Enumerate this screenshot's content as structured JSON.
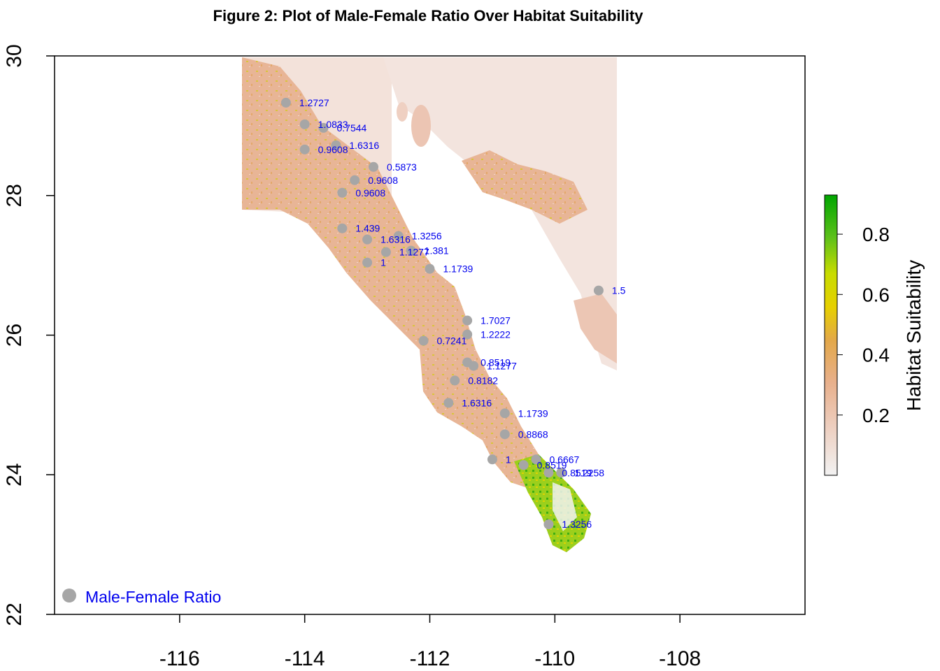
{
  "title": "Figure 2: Plot of Male-Female Ratio Over Habitat Suitability",
  "chart_data": {
    "type": "scatter",
    "map": "raster habitat suitability map, Baja California Sur / Gulf of California region",
    "title": "Figure 2: Plot of Male-Female Ratio Over Habitat Suitability",
    "xlim": [
      -118,
      -106
    ],
    "ylim": [
      22,
      30
    ],
    "x_ticks": [
      -116,
      -114,
      -112,
      -110,
      -108
    ],
    "y_ticks": [
      22,
      24,
      26,
      28,
      30
    ],
    "x_tick_labels": [
      "-116",
      "-114",
      "-112",
      "-110",
      "-108"
    ],
    "y_tick_labels": [
      "22",
      "24",
      "26",
      "28",
      "30"
    ],
    "colorbar": {
      "label": "Habitat Suitability",
      "range": [
        0,
        0.93
      ],
      "ticks": [
        0.2,
        0.4,
        0.6,
        0.8
      ],
      "tick_labels": [
        "0.2",
        "0.4",
        "0.6",
        "0.8"
      ],
      "colors": [
        "#f2f2f2",
        "#eab9a3",
        "#e3a65c",
        "#e6c81a",
        "#e6e600",
        "#6ec418",
        "#00a600"
      ]
    },
    "point_color": "#a6a6a6",
    "label_color": "#0000ee",
    "legend": {
      "label": "Male-Female Ratio",
      "position": "bottom-left"
    },
    "points": [
      {
        "x": -114.3,
        "y": 29.33,
        "label": "1.2727"
      },
      {
        "x": -114.0,
        "y": 29.02,
        "label": "1.0833"
      },
      {
        "x": -113.7,
        "y": 28.97,
        "label": "0.7544"
      },
      {
        "x": -114.0,
        "y": 28.66,
        "label": "0.9608"
      },
      {
        "x": -113.5,
        "y": 28.72,
        "label": "1.6316"
      },
      {
        "x": -112.9,
        "y": 28.41,
        "label": "0.5873"
      },
      {
        "x": -113.2,
        "y": 28.22,
        "label": "0.9608"
      },
      {
        "x": -113.4,
        "y": 28.04,
        "label": "0.9608"
      },
      {
        "x": -113.4,
        "y": 27.53,
        "label": "1.439"
      },
      {
        "x": -112.5,
        "y": 27.42,
        "label": "1.3256"
      },
      {
        "x": -113.0,
        "y": 27.37,
        "label": "1.6316"
      },
      {
        "x": -112.3,
        "y": 27.21,
        "label": "1.381"
      },
      {
        "x": -112.7,
        "y": 27.19,
        "label": "1.1277"
      },
      {
        "x": -113.0,
        "y": 27.04,
        "label": "1"
      },
      {
        "x": -112.0,
        "y": 26.95,
        "label": "1.1739"
      },
      {
        "x": -109.3,
        "y": 26.64,
        "label": "1.5"
      },
      {
        "x": -111.4,
        "y": 26.21,
        "label": "1.7027"
      },
      {
        "x": -111.4,
        "y": 26.01,
        "label": "1.2222"
      },
      {
        "x": -112.1,
        "y": 25.92,
        "label": "0.7241"
      },
      {
        "x": -111.4,
        "y": 25.61,
        "label": "0.8519"
      },
      {
        "x": -111.3,
        "y": 25.56,
        "label": "1.1277"
      },
      {
        "x": -111.6,
        "y": 25.35,
        "label": "0.8182"
      },
      {
        "x": -111.7,
        "y": 25.03,
        "label": "1.6316"
      },
      {
        "x": -110.8,
        "y": 24.88,
        "label": "1.1739"
      },
      {
        "x": -110.8,
        "y": 24.58,
        "label": "0.8868"
      },
      {
        "x": -110.3,
        "y": 24.22,
        "label": "0.6667"
      },
      {
        "x": -111.0,
        "y": 24.22,
        "label": "1"
      },
      {
        "x": -110.5,
        "y": 24.14,
        "label": "0.8519"
      },
      {
        "x": -110.1,
        "y": 24.03,
        "label": "0.8519"
      },
      {
        "x": -109.9,
        "y": 24.03,
        "label": "1.2258"
      },
      {
        "x": -110.1,
        "y": 23.29,
        "label": "1.3256"
      }
    ]
  }
}
